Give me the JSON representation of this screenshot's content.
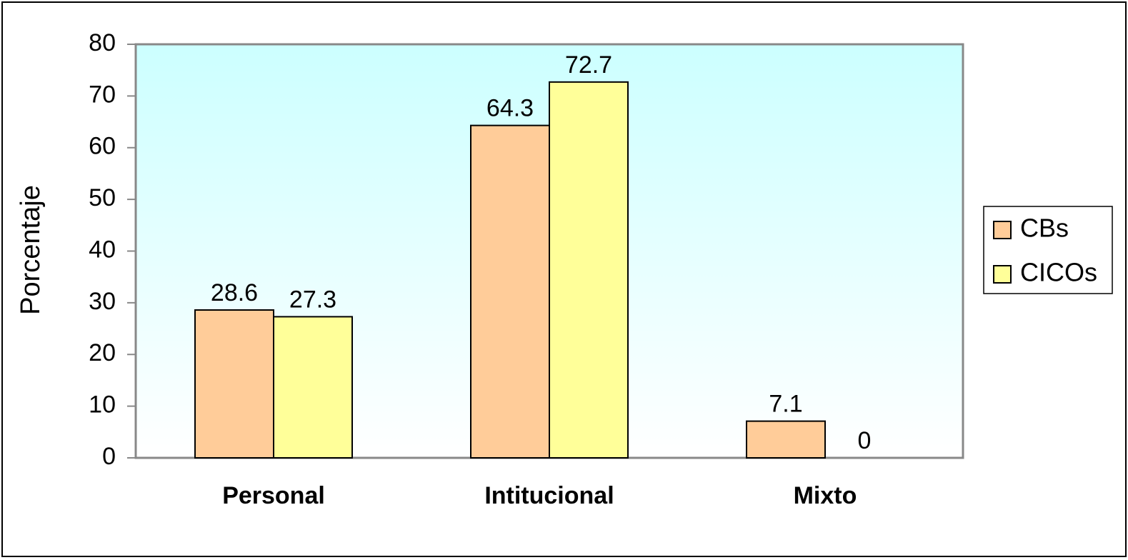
{
  "chart_data": {
    "type": "bar",
    "y_label": "Porcentaje",
    "categories": [
      "Personal",
      "Intitucional",
      "Mixto"
    ],
    "series": [
      {
        "name": "CBs",
        "color": "#ffcc99",
        "values": [
          28.6,
          64.3,
          7.1
        ]
      },
      {
        "name": "CICOs",
        "color": "#ffff99",
        "values": [
          27.3,
          72.7,
          0
        ]
      }
    ],
    "ylim": [
      0,
      80
    ],
    "yticks": [
      0,
      10,
      20,
      30,
      40,
      50,
      60,
      70,
      80
    ],
    "grid": false,
    "legend": "right"
  }
}
